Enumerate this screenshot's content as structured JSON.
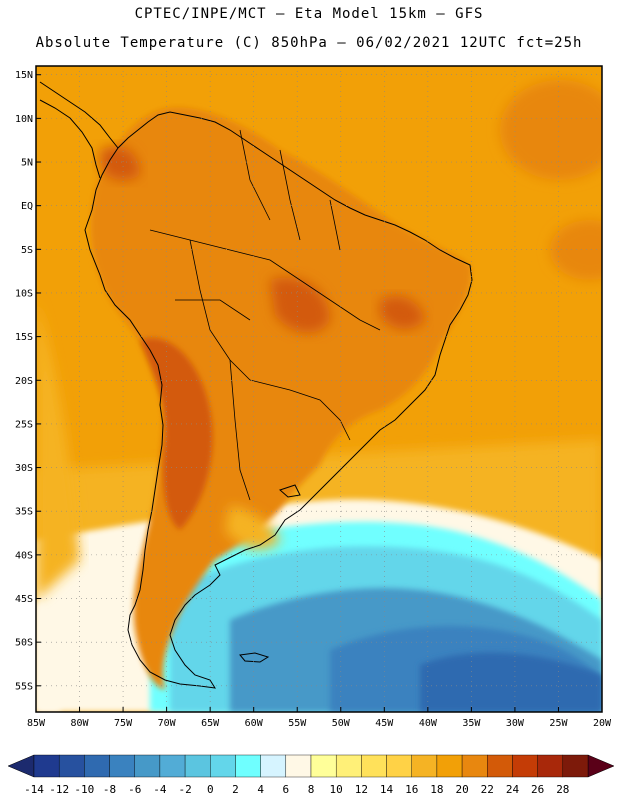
{
  "header": {
    "line1": "CPTEC/INPE/MCT –  Eta Model 15km – GFS",
    "line2": "Absolute Temperature (C) 850hPa – 06/02/2021 12UTC fct=25h"
  },
  "map": {
    "lon_range": [
      -85,
      -20
    ],
    "lat_range": [
      -58,
      16
    ],
    "lat_ticks": [
      "15N",
      "10N",
      "5N",
      "EQ",
      "5S",
      "10S",
      "15S",
      "20S",
      "25S",
      "30S",
      "35S",
      "40S",
      "45S",
      "50S",
      "55S"
    ],
    "lat_values": [
      15,
      10,
      5,
      0,
      -5,
      -10,
      -15,
      -20,
      -25,
      -30,
      -35,
      -40,
      -45,
      -50,
      -55
    ],
    "lon_ticks": [
      "85W",
      "80W",
      "75W",
      "70W",
      "65W",
      "60W",
      "55W",
      "50W",
      "45W",
      "40W",
      "35W",
      "30W",
      "25W",
      "20W"
    ],
    "lon_values": [
      -85,
      -80,
      -75,
      -70,
      -65,
      -60,
      -55,
      -50,
      -45,
      -40,
      -35,
      -30,
      -25,
      -20
    ],
    "grid": "dotted"
  },
  "colorbar": {
    "labels": [
      "-14",
      "-12",
      "-10",
      "-8",
      "-6",
      "-4",
      "-2",
      "0",
      "2",
      "4",
      "6",
      "8",
      "10",
      "12",
      "14",
      "16",
      "18",
      "20",
      "22",
      "24",
      "26",
      "28"
    ],
    "colors": [
      "#1f3a8f",
      "#27519f",
      "#2f6ab0",
      "#3a82bf",
      "#4699c8",
      "#52acd6",
      "#5bc5e0",
      "#63d6ea",
      "#6fffff",
      "#d6f4ff",
      "#fff8e6",
      "#ffff99",
      "#fff078",
      "#ffe15a",
      "#ffd246",
      "#f5b324",
      "#f2a007",
      "#e8870f",
      "#d35a08",
      "#c43c06",
      "#a8280a",
      "#7d1a0a"
    ],
    "low_arrow_color": "#1c2a6e",
    "high_arrow_color": "#5a0018"
  }
}
